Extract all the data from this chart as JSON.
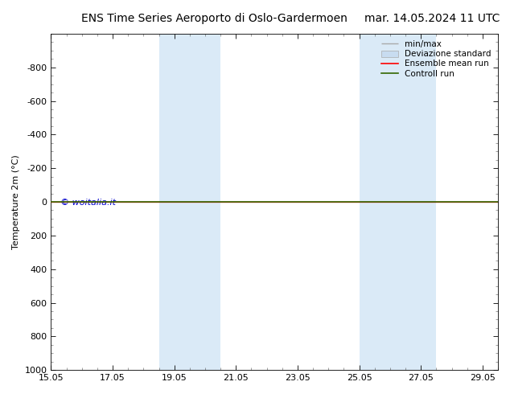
{
  "title_left": "ENS Time Series Aeroporto di Oslo-Gardermoen",
  "title_right": "mar. 14.05.2024 11 UTC",
  "ylabel": "Temperature 2m (°C)",
  "xtick_labels": [
    "15.05",
    "17.05",
    "19.05",
    "21.05",
    "23.05",
    "25.05",
    "27.05",
    "29.05"
  ],
  "xtick_positions": [
    0,
    2,
    4,
    6,
    8,
    10,
    12,
    14
  ],
  "ylim_top": -1000,
  "ylim_bottom": 1000,
  "ytick_positions": [
    -800,
    -600,
    -400,
    -200,
    0,
    200,
    400,
    600,
    800,
    1000
  ],
  "ytick_labels": [
    "-800",
    "-600",
    "-400",
    "-200",
    "0",
    "200",
    "400",
    "600",
    "800",
    "1000"
  ],
  "bg_color": "#ffffff",
  "shaded_band1_xmin": 3.5,
  "shaded_band1_mid": 4.7,
  "shaded_band1_xmax": 5.5,
  "shaded_band2_xmin": 10.0,
  "shaded_band2_mid": 11.5,
  "shaded_band2_xmax": 12.5,
  "shade_color": "#daeaf7",
  "mean_run_color": "#ff0000",
  "control_run_color": "#336600",
  "line_y": 0,
  "watermark_text": "© woitalia.it",
  "watermark_color": "#0000cc",
  "legend_entries": [
    "min/max",
    "Deviazione standard",
    "Ensemble mean run",
    "Controll run"
  ],
  "legend_line_color": "#aaaaaa",
  "legend_patch_color": "#c8dcf0",
  "font_size_title": 10,
  "font_size_axis": 8,
  "font_size_ticks": 8,
  "font_size_legend": 7.5,
  "tick_minor_color": "#999999"
}
